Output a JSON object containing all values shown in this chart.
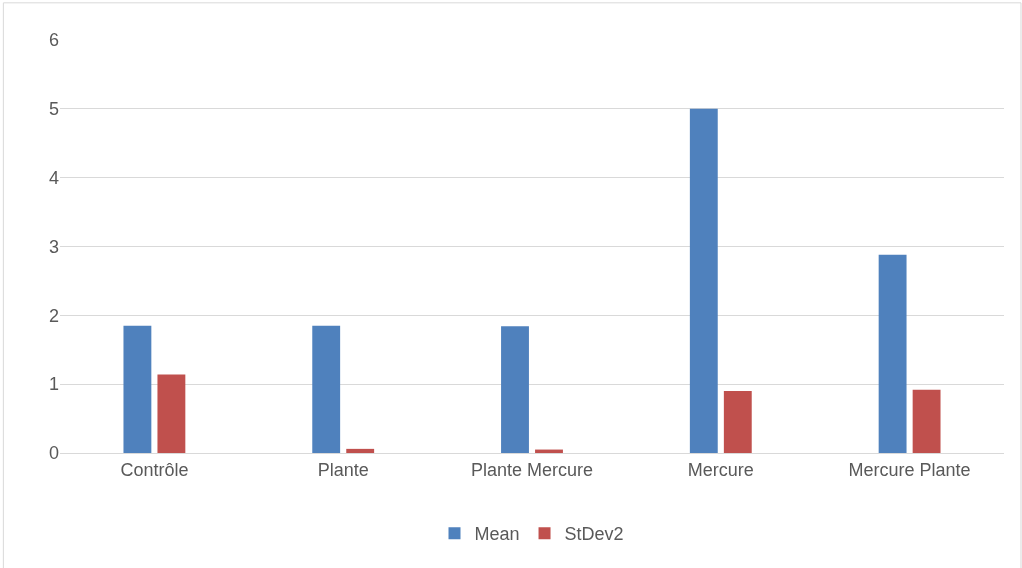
{
  "chart_data": {
    "type": "bar",
    "categories": [
      "Contrôle",
      "Plante",
      "Plante Mercure",
      "Mercure",
      "Mercure Plante"
    ],
    "series": [
      {
        "name": "Mean",
        "color": "#4f81bd",
        "values": [
          1.85,
          1.85,
          1.84,
          5.0,
          2.88
        ]
      },
      {
        "name": "StDev2",
        "color": "#c0504d",
        "values": [
          1.14,
          0.06,
          0.05,
          0.9,
          0.92
        ]
      }
    ],
    "ylim": [
      0,
      6
    ],
    "yticks": [
      0,
      1,
      2,
      3,
      4,
      5,
      6
    ],
    "grid": "y",
    "legend": "bottom"
  }
}
